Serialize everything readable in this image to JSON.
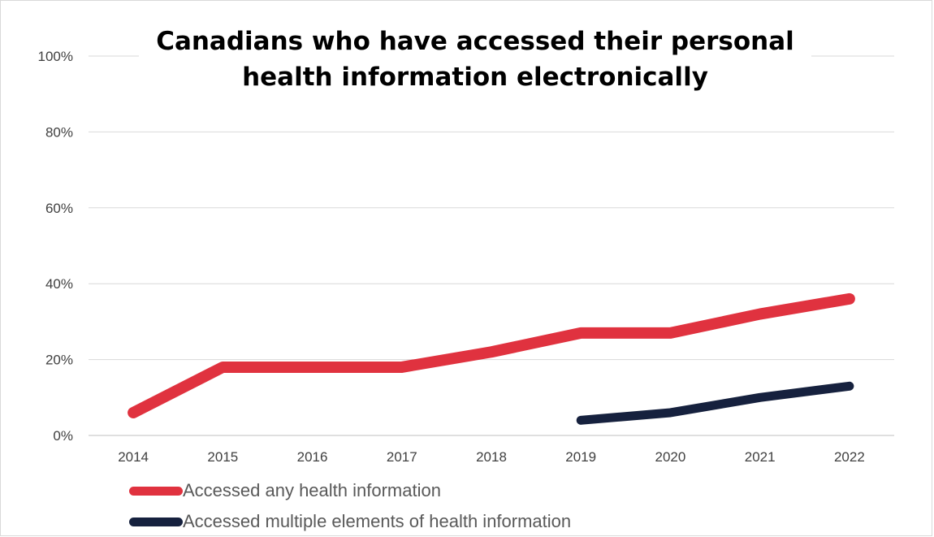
{
  "chart_data": {
    "type": "line",
    "title": "Canadians who have accessed their personal health information electronically",
    "title_lines": [
      "Canadians who have accessed their personal",
      "health information electronically"
    ],
    "categories": [
      "2014",
      "2015",
      "2016",
      "2017",
      "2018",
      "2019",
      "2020",
      "2021",
      "2022"
    ],
    "ylim": [
      0,
      100
    ],
    "yticks": [
      "0%",
      "20%",
      "40%",
      "60%",
      "80%",
      "100%"
    ],
    "ytick_values": [
      0,
      20,
      40,
      60,
      80,
      100
    ],
    "grid": true,
    "legend_position": "bottom-left",
    "series": [
      {
        "name": "Accessed any health information",
        "color": "#e0323f",
        "values": [
          6,
          18,
          18,
          18,
          22,
          27,
          27,
          32,
          36
        ]
      },
      {
        "name": "Accessed multiple elements of health information",
        "color": "#16213e",
        "values": [
          null,
          null,
          null,
          null,
          null,
          4,
          6,
          10,
          13
        ]
      }
    ]
  }
}
